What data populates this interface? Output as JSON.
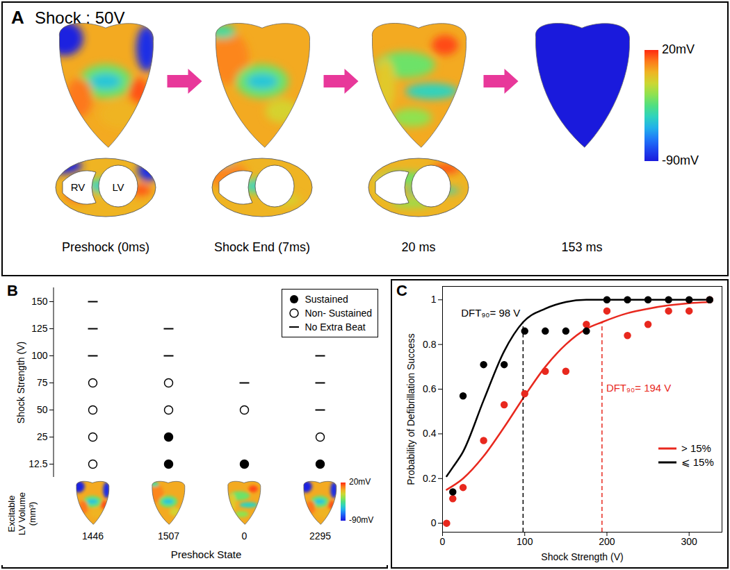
{
  "chart_data": [
    {
      "panel": "A",
      "type": "diagram",
      "title": "Shock : 50V",
      "frames": [
        {
          "label": "Preshock (0ms)",
          "cross_section": true
        },
        {
          "label": "Shock End (7ms)",
          "cross_section": true
        },
        {
          "label": "20 ms",
          "cross_section": true
        },
        {
          "label": "153 ms",
          "cross_section": false,
          "potential_mV": -90
        }
      ],
      "chamber_labels": [
        "RV",
        "LV"
      ],
      "colorbar": {
        "range": [
          -90,
          20
        ],
        "ticks": [
          {
            "value": 20,
            "label": "20mV"
          },
          {
            "value": -90,
            "label": "-90mV"
          }
        ]
      }
    },
    {
      "panel": "B",
      "type": "scatter",
      "categories": [
        "1446",
        "1507",
        "0",
        "2295"
      ],
      "category_title": "Excitable LV Volume (mm³)",
      "x_label": "Preshock State",
      "y_label": "Shock Strength (V)",
      "yticks": [
        12.5,
        25,
        50,
        75,
        100,
        125,
        150
      ],
      "legend": "upper right",
      "series": [
        {
          "name": "Sustained",
          "marker": "filled circle",
          "color": "#000000"
        },
        {
          "name": "Non- Sustained",
          "marker": "open circle",
          "color": "#000000"
        },
        {
          "name": "No Extra Beat",
          "marker": "dash",
          "color": "#000000"
        }
      ],
      "outcomes": [
        [
          "Non- Sustained",
          "Non- Sustained",
          "Non- Sustained",
          "Non- Sustained",
          "No Extra Beat",
          "No Extra Beat",
          "No Extra Beat"
        ],
        [
          "Sustained",
          "Sustained",
          "Non- Sustained",
          "Non- Sustained",
          "No Extra Beat",
          "No Extra Beat",
          null
        ],
        [
          "Sustained",
          null,
          "Non- Sustained",
          "No Extra Beat",
          null,
          null,
          null
        ],
        [
          "Sustained",
          "Non- Sustained",
          "No Extra Beat",
          "No Extra Beat",
          "No Extra Beat",
          null,
          null
        ]
      ],
      "colorbar": {
        "range": [
          -90,
          20
        ],
        "ticks": [
          {
            "value": 20,
            "label": "20mV"
          },
          {
            "value": -90,
            "label": "-90mV"
          }
        ]
      }
    },
    {
      "panel": "C",
      "type": "scatter",
      "x_label": "Shock Strength (V)",
      "y_label": "Probability of Defibrillation Success",
      "xlim": [
        0,
        340
      ],
      "xticks": [
        0,
        100,
        200,
        300
      ],
      "ylim": [
        -0.04,
        1.06
      ],
      "yticks": [
        0,
        0.2,
        0.4,
        0.6,
        0.8,
        1
      ],
      "legend": "lower right",
      "dft_level": 0.9,
      "series": [
        {
          "name": "> 15%",
          "color": "#e8281e",
          "x": [
            5,
            12.5,
            25,
            50,
            75,
            100,
            125,
            150,
            175,
            200,
            225,
            250,
            275,
            300,
            325
          ],
          "values": [
            0,
            0.11,
            0.16,
            0.37,
            0.53,
            0.58,
            0.68,
            0.68,
            0.89,
            0.95,
            0.84,
            0.89,
            0.95,
            0.95,
            1.0
          ],
          "fit": {
            "x": [
              5,
              25,
              50,
              75,
              100,
              125,
              150,
              175,
              194,
              225,
              250,
              275,
              300,
              325
            ],
            "values": [
              0.15,
              0.2,
              0.3,
              0.43,
              0.57,
              0.7,
              0.8,
              0.87,
              0.9,
              0.94,
              0.96,
              0.975,
              0.985,
              0.99
            ]
          },
          "dft90": 194,
          "annotation": "DFT₉₀= 194 V"
        },
        {
          "name": "⩽ 15%",
          "color": "#000000",
          "x": [
            12.5,
            25,
            50,
            75,
            100,
            125,
            150,
            175,
            200,
            225,
            250,
            275,
            300,
            325
          ],
          "values": [
            0.14,
            0.57,
            0.71,
            0.71,
            0.86,
            0.86,
            0.86,
            0.86,
            1.0,
            1.0,
            1.0,
            1.0,
            1.0,
            1.0
          ],
          "fit": {
            "x": [
              5,
              12.5,
              25,
              50,
              75,
              98,
              125,
              150,
              175,
              200,
              250,
              325
            ],
            "values": [
              0.21,
              0.25,
              0.32,
              0.55,
              0.77,
              0.9,
              0.96,
              0.99,
              1.0,
              1.0,
              1.0,
              1.0
            ]
          },
          "dft90": 98,
          "annotation": "DFT₉₀= 98 V"
        }
      ]
    }
  ]
}
